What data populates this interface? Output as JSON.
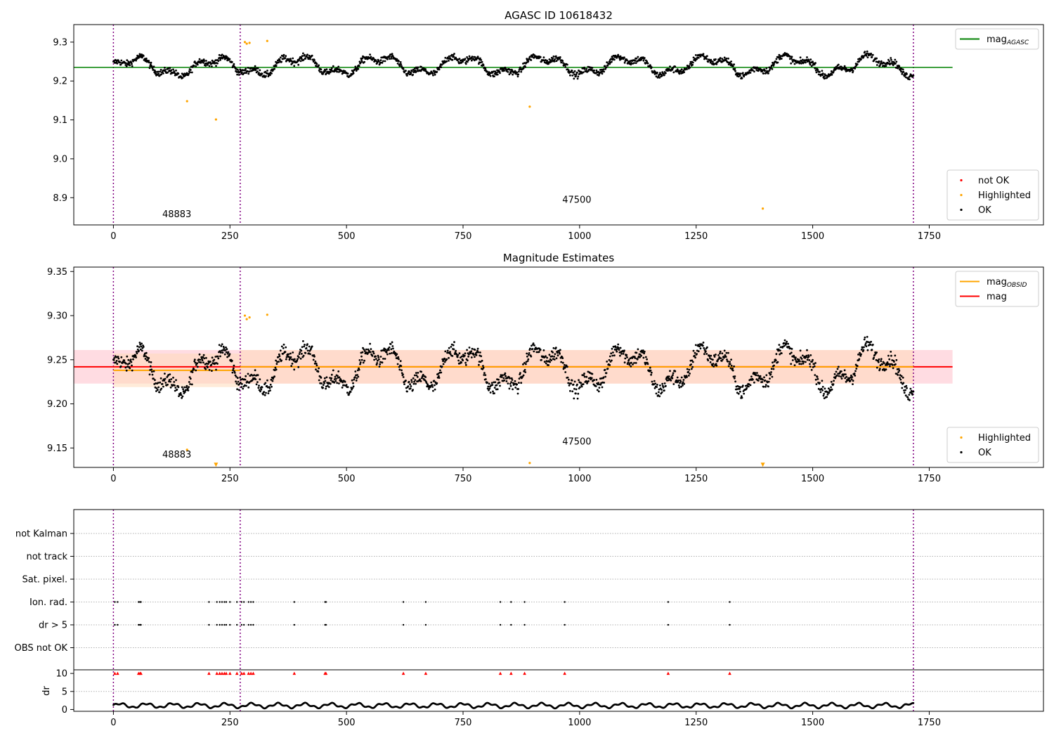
{
  "chart_data": [
    {
      "type": "scatter",
      "title": "AGASC ID 10618432",
      "xlim": [
        -85,
        1995
      ],
      "ylim": [
        8.83,
        9.345
      ],
      "xticks": [
        0,
        250,
        500,
        750,
        1000,
        1250,
        1500,
        1750
      ],
      "yticks": [
        8.9,
        9.0,
        9.1,
        9.2,
        9.3
      ],
      "obs_boundaries": [
        0,
        272,
        1716
      ],
      "obs_labels": [
        {
          "text": "48883",
          "x": 136,
          "y": 8.85
        },
        {
          "text": "47500",
          "x": 994,
          "y": 8.887
        }
      ],
      "series": [
        {
          "name": "mag_AGASC",
          "kind": "line",
          "color": "#008000",
          "x": [
            -85,
            1800
          ],
          "y": [
            9.235,
            9.235
          ]
        },
        {
          "name": "Highlighted",
          "kind": "points",
          "color": "#ffa500",
          "x": [
            158,
            220,
            282,
            286,
            292,
            330,
            893,
            1393
          ],
          "y": [
            9.148,
            9.101,
            9.3,
            9.296,
            9.298,
            9.303,
            9.134,
            8.872
          ]
        }
      ],
      "ok_series": {
        "name": "OK",
        "color": "#000000",
        "x_range": [
          0,
          1716
        ],
        "count": 1700
      },
      "legends": [
        {
          "position": "upper-right",
          "entries": [
            {
              "label": "mag",
              "sub": "AGASC",
              "color": "#008000",
              "marker": "line"
            }
          ]
        },
        {
          "position": "lower-right",
          "entries": [
            {
              "label": "not OK",
              "color": "#ff0000",
              "marker": "dot"
            },
            {
              "label": "Highlighted",
              "color": "#ffa500",
              "marker": "dot"
            },
            {
              "label": "OK",
              "color": "#000000",
              "marker": "dot"
            }
          ]
        }
      ]
    },
    {
      "type": "scatter",
      "title": "Magnitude Estimates",
      "xlim": [
        -85,
        1995
      ],
      "ylim": [
        9.128,
        9.355
      ],
      "xticks": [
        0,
        250,
        500,
        750,
        1000,
        1250,
        1500,
        1750
      ],
      "yticks": [
        9.15,
        9.2,
        9.25,
        9.3,
        9.35
      ],
      "obs_boundaries": [
        0,
        272,
        1716
      ],
      "obs_labels": [
        {
          "text": "48883",
          "x": 136,
          "y": 9.139
        },
        {
          "text": "47500",
          "x": 994,
          "y": 9.154
        }
      ],
      "bands": [
        {
          "color": "#ffc0cb",
          "x": [
            -85,
            1800
          ],
          "y": [
            9.223,
            9.261
          ]
        },
        {
          "color": "#ffdab9",
          "x": [
            0,
            272
          ],
          "y": [
            9.219,
            9.257
          ]
        },
        {
          "color": "#ffdab9",
          "x": [
            272,
            1716
          ],
          "y": [
            9.223,
            9.261
          ]
        }
      ],
      "series": [
        {
          "name": "mag",
          "kind": "line",
          "color": "#ff0000",
          "x": [
            -85,
            1800
          ],
          "y": [
            9.242,
            9.242
          ]
        },
        {
          "name": "mag_OBSID",
          "kind": "segments",
          "color": "#ffa500",
          "segments": [
            {
              "x": [
                0,
                272
              ],
              "y": [
                9.238,
                9.238
              ]
            },
            {
              "x": [
                272,
                1716
              ],
              "y": [
                9.242,
                9.242
              ]
            }
          ]
        },
        {
          "name": "Highlighted",
          "kind": "points",
          "color": "#ffa500",
          "x": [
            158,
            282,
            286,
            292,
            330,
            893
          ],
          "y": [
            9.148,
            9.3,
            9.296,
            9.298,
            9.301,
            9.133
          ]
        },
        {
          "name": "Highlighted (off-scale)",
          "kind": "triangles-down",
          "color": "#ffa500",
          "x": [
            220,
            1393
          ],
          "y": [
            9.131,
            9.131
          ]
        }
      ],
      "ok_series": {
        "name": "OK",
        "color": "#000000",
        "x_range": [
          0,
          1716
        ],
        "count": 1700
      },
      "legends": [
        {
          "position": "upper-right",
          "entries": [
            {
              "label": "mag",
              "sub": "OBSID",
              "color": "#ffa500",
              "marker": "line"
            },
            {
              "label": "mag",
              "sub": "",
              "color": "#ff0000",
              "marker": "line"
            }
          ]
        },
        {
          "position": "lower-right",
          "entries": [
            {
              "label": "Highlighted",
              "color": "#ffa500",
              "marker": "dot"
            },
            {
              "label": "OK",
              "color": "#000000",
              "marker": "dot"
            }
          ]
        }
      ]
    },
    {
      "type": "scatter",
      "title": "",
      "xlim": [
        -85,
        1995
      ],
      "xticks": [
        0,
        250,
        500,
        750,
        1000,
        1250,
        1500,
        1750
      ],
      "obs_boundaries": [
        0,
        272,
        1716
      ],
      "flag_rows": [
        "not Kalman",
        "not track",
        "Sat. pixel.",
        "Ion. rad.",
        "dr > 5",
        "OBS not OK"
      ],
      "flag_times": [
        3,
        9,
        54,
        57,
        59,
        205,
        222,
        228,
        233,
        238,
        242,
        250,
        265,
        275,
        280,
        290,
        295,
        300,
        388,
        454,
        456,
        622,
        670,
        830,
        853,
        882,
        968,
        1190,
        1322
      ],
      "flagged_rows": [
        "Ion. rad.",
        "dr > 5"
      ],
      "dr_ylabel": "dr",
      "dr_ylim": [
        -0.5,
        11
      ],
      "dr_yticks": [
        0,
        5,
        10
      ],
      "dr_clip_marker_color": "#ff0000",
      "dr_clip_value": 10
    }
  ]
}
